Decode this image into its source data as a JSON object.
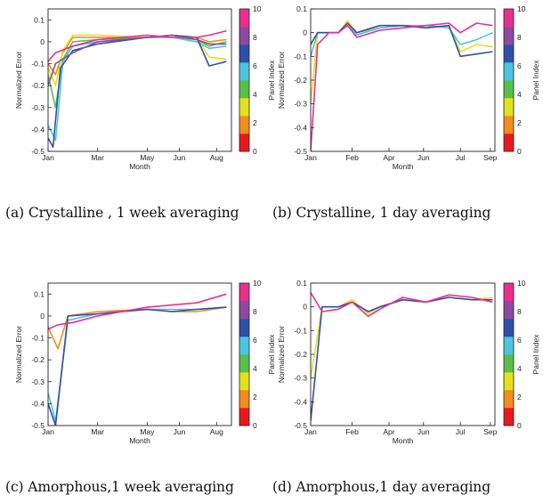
{
  "colorbar": {
    "label": "Panel Index",
    "ticks": [
      "0",
      "2",
      "4",
      "6",
      "8",
      "10"
    ],
    "colors": [
      "#e8191e",
      "#f28c1e",
      "#e2e21c",
      "#58c04a",
      "#4cc4e0",
      "#2f4fa8",
      "#8a4aa0",
      "#e8308e"
    ]
  },
  "chart_data": [
    {
      "id": "a",
      "type": "line",
      "caption": "(a) Crystalline , 1 week averaging",
      "xlabel": "Month",
      "ylabel": "Normalized Error",
      "xlim": [
        0,
        7.4
      ],
      "ylim": [
        -0.5,
        0.15
      ],
      "x_ticks": [
        {
          "x": 0,
          "label": "Jan"
        },
        {
          "x": 2,
          "label": "Mar"
        },
        {
          "x": 4,
          "label": "May"
        },
        {
          "x": 5.3,
          "label": "Jun"
        },
        {
          "x": 6.8,
          "label": "Aug"
        }
      ],
      "y_ticks": [
        {
          "v": 0.1,
          "label": "0.1"
        },
        {
          "v": 0,
          "label": "0"
        },
        {
          "v": -0.1,
          "label": "-0.1"
        },
        {
          "v": -0.2,
          "label": "-0.2"
        },
        {
          "v": -0.3,
          "label": "-0.3"
        },
        {
          "v": -0.4,
          "label": "-0.4"
        },
        {
          "v": -0.5,
          "label": "-0.5"
        }
      ],
      "series": [
        {
          "color": "#f28c1e",
          "points": [
            [
              0,
              -0.1
            ],
            [
              0.3,
              -0.15
            ],
            [
              0.6,
              -0.05
            ],
            [
              1,
              0.02
            ],
            [
              2,
              0.02
            ],
            [
              4,
              0.02
            ],
            [
              5,
              0.03
            ],
            [
              6,
              0.02
            ],
            [
              6.5,
              0.0
            ],
            [
              7.2,
              0.01
            ]
          ]
        },
        {
          "color": "#e2e21c",
          "points": [
            [
              0,
              -0.12
            ],
            [
              0.3,
              -0.2
            ],
            [
              0.6,
              -0.04
            ],
            [
              1,
              0.03
            ],
            [
              2,
              0.03
            ],
            [
              4,
              0.02
            ],
            [
              5,
              0.03
            ],
            [
              6,
              0.02
            ],
            [
              6.5,
              -0.07
            ],
            [
              7.2,
              -0.08
            ]
          ]
        },
        {
          "color": "#58c04a",
          "points": [
            [
              0,
              -0.15
            ],
            [
              0.3,
              -0.3
            ],
            [
              0.6,
              -0.08
            ],
            [
              1,
              0.0
            ],
            [
              2,
              0.01
            ],
            [
              4,
              0.02
            ],
            [
              5,
              0.02
            ],
            [
              6,
              0.01
            ],
            [
              6.5,
              -0.02
            ],
            [
              7.2,
              0.0
            ]
          ]
        },
        {
          "color": "#4cc4e0",
          "points": [
            [
              0,
              -0.38
            ],
            [
              0.3,
              -0.45
            ],
            [
              0.6,
              -0.09
            ],
            [
              1,
              -0.02
            ],
            [
              2,
              0.0
            ],
            [
              4,
              0.02
            ],
            [
              5,
              0.02
            ],
            [
              6,
              0.0
            ],
            [
              6.5,
              -0.03
            ],
            [
              7.2,
              -0.02
            ]
          ]
        },
        {
          "color": "#2f4fa8",
          "points": [
            [
              0,
              -0.44
            ],
            [
              0.2,
              -0.48
            ],
            [
              0.5,
              -0.12
            ],
            [
              1,
              -0.04
            ],
            [
              2,
              -0.01
            ],
            [
              4,
              0.02
            ],
            [
              5,
              0.03
            ],
            [
              6,
              0.02
            ],
            [
              6.5,
              -0.11
            ],
            [
              7.2,
              -0.09
            ]
          ]
        },
        {
          "color": "#8a4aa0",
          "points": [
            [
              0,
              -0.2
            ],
            [
              0.3,
              -0.1
            ],
            [
              1,
              -0.05
            ],
            [
              2,
              0.0
            ],
            [
              4,
              0.02
            ],
            [
              5,
              0.03
            ],
            [
              6,
              0.01
            ],
            [
              6.5,
              -0.01
            ],
            [
              7.2,
              -0.01
            ]
          ]
        },
        {
          "color": "#e8308e",
          "points": [
            [
              0,
              -0.09
            ],
            [
              0.3,
              -0.05
            ],
            [
              1,
              -0.02
            ],
            [
              2,
              0.01
            ],
            [
              4,
              0.03
            ],
            [
              5,
              0.02
            ],
            [
              6,
              0.02
            ],
            [
              6.5,
              0.03
            ],
            [
              7.2,
              0.05
            ]
          ]
        }
      ]
    },
    {
      "id": "b",
      "type": "line",
      "caption": "(b) Crystalline, 1 day averaging",
      "xlabel": "Month",
      "ylabel": "Normalized Error",
      "xlim": [
        0,
        8
      ],
      "ylim": [
        -0.5,
        0.1
      ],
      "x_ticks": [
        {
          "x": 0,
          "label": "Jan"
        },
        {
          "x": 1.8,
          "label": "Feb"
        },
        {
          "x": 3.4,
          "label": "Apr"
        },
        {
          "x": 4.9,
          "label": "Jun"
        },
        {
          "x": 6.5,
          "label": "Jul"
        },
        {
          "x": 7.8,
          "label": "Sep"
        }
      ],
      "y_ticks": [
        {
          "v": 0.1,
          "label": "0.1"
        },
        {
          "v": 0,
          "label": "0"
        },
        {
          "v": -0.1,
          "label": "-0.1"
        },
        {
          "v": -0.2,
          "label": "-0.2"
        },
        {
          "v": -0.3,
          "label": "-0.3"
        },
        {
          "v": -0.4,
          "label": "-0.4"
        },
        {
          "v": -0.5,
          "label": "-0.5"
        }
      ],
      "series": [
        {
          "color": "#e2e21c",
          "points": [
            [
              0,
              -0.3
            ],
            [
              0.3,
              0.0
            ],
            [
              0.8,
              0.0
            ],
            [
              1.2,
              0.0
            ],
            [
              1.6,
              0.05
            ],
            [
              2,
              0.0
            ],
            [
              3,
              0.02
            ],
            [
              4,
              0.03
            ],
            [
              5,
              0.02
            ],
            [
              6,
              0.03
            ],
            [
              6.5,
              -0.08
            ],
            [
              7.2,
              -0.05
            ],
            [
              7.9,
              -0.06
            ]
          ]
        },
        {
          "color": "#4cc4e0",
          "points": [
            [
              0,
              -0.1
            ],
            [
              0.3,
              0.0
            ],
            [
              0.8,
              0.0
            ],
            [
              1.2,
              0.0
            ],
            [
              1.6,
              0.04
            ],
            [
              2,
              -0.01
            ],
            [
              3,
              0.02
            ],
            [
              4,
              0.03
            ],
            [
              5,
              0.03
            ],
            [
              6,
              0.02
            ],
            [
              6.5,
              -0.05
            ],
            [
              7.2,
              -0.03
            ],
            [
              7.9,
              0.0
            ]
          ]
        },
        {
          "color": "#2f4fa8",
          "points": [
            [
              0,
              -0.05
            ],
            [
              0.3,
              0.0
            ],
            [
              0.8,
              0.0
            ],
            [
              1.2,
              0.0
            ],
            [
              1.6,
              0.04
            ],
            [
              2,
              0.0
            ],
            [
              3,
              0.03
            ],
            [
              4,
              0.03
            ],
            [
              5,
              0.02
            ],
            [
              6,
              0.03
            ],
            [
              6.5,
              -0.1
            ],
            [
              7.2,
              -0.09
            ],
            [
              7.9,
              -0.08
            ]
          ]
        },
        {
          "color": "#e8308e",
          "points": [
            [
              0,
              -0.5
            ],
            [
              0.3,
              -0.05
            ],
            [
              0.8,
              0.0
            ],
            [
              1.2,
              0.0
            ],
            [
              1.6,
              0.03
            ],
            [
              2,
              -0.02
            ],
            [
              3,
              0.01
            ],
            [
              4,
              0.02
            ],
            [
              5,
              0.03
            ],
            [
              6,
              0.04
            ],
            [
              6.5,
              0.0
            ],
            [
              7.2,
              0.04
            ],
            [
              7.9,
              0.03
            ]
          ]
        }
      ]
    },
    {
      "id": "c",
      "type": "line",
      "caption": "(c) Amorphous,1 week averaging",
      "xlabel": "Month",
      "ylabel": "Normalized Error",
      "xlim": [
        0,
        7.4
      ],
      "ylim": [
        -0.5,
        0.15
      ],
      "x_ticks": [
        {
          "x": 0,
          "label": "Jan"
        },
        {
          "x": 2,
          "label": "Mar"
        },
        {
          "x": 4,
          "label": "May"
        },
        {
          "x": 5.3,
          "label": "Jun"
        },
        {
          "x": 6.8,
          "label": "Aug"
        }
      ],
      "y_ticks": [
        {
          "v": 0.1,
          "label": "0.1"
        },
        {
          "v": 0,
          "label": "0"
        },
        {
          "v": -0.1,
          "label": "-0.1"
        },
        {
          "v": -0.2,
          "label": "-0.2"
        },
        {
          "v": -0.3,
          "label": "-0.3"
        },
        {
          "v": -0.4,
          "label": "-0.4"
        },
        {
          "v": -0.5,
          "label": "-0.5"
        }
      ],
      "series": [
        {
          "color": "#f28c1e",
          "points": [
            [
              0,
              -0.05
            ],
            [
              0.4,
              -0.15
            ],
            [
              0.8,
              0.0
            ],
            [
              2,
              0.02
            ],
            [
              4,
              0.03
            ],
            [
              5,
              0.02
            ],
            [
              6,
              0.02
            ],
            [
              7.2,
              0.04
            ]
          ]
        },
        {
          "color": "#4cc4e0",
          "points": [
            [
              0,
              -0.35
            ],
            [
              0.3,
              -0.48
            ],
            [
              0.8,
              -0.02
            ],
            [
              2,
              0.01
            ],
            [
              4,
              0.03
            ],
            [
              5,
              0.03
            ],
            [
              6,
              0.03
            ],
            [
              7.2,
              0.04
            ]
          ]
        },
        {
          "color": "#2f4fa8",
          "points": [
            [
              0,
              -0.4
            ],
            [
              0.3,
              -0.5
            ],
            [
              0.8,
              0.0
            ],
            [
              2,
              0.01
            ],
            [
              4,
              0.03
            ],
            [
              5,
              0.02
            ],
            [
              6,
              0.03
            ],
            [
              7.2,
              0.04
            ]
          ]
        },
        {
          "color": "#e8308e",
          "points": [
            [
              0,
              -0.06
            ],
            [
              0.4,
              -0.04
            ],
            [
              1,
              -0.03
            ],
            [
              2,
              0.0
            ],
            [
              4,
              0.04
            ],
            [
              5,
              0.05
            ],
            [
              6,
              0.06
            ],
            [
              7.2,
              0.1
            ]
          ]
        }
      ]
    },
    {
      "id": "d",
      "type": "line",
      "caption": "(d) Amorphous,1 day averaging",
      "xlabel": "Month",
      "ylabel": "Normalized Error",
      "xlim": [
        0,
        8
      ],
      "ylim": [
        -0.5,
        0.1
      ],
      "x_ticks": [
        {
          "x": 0,
          "label": "Jan"
        },
        {
          "x": 1.8,
          "label": "Feb"
        },
        {
          "x": 3.4,
          "label": "Apr"
        },
        {
          "x": 4.9,
          "label": "Jun"
        },
        {
          "x": 6.5,
          "label": "Jul"
        },
        {
          "x": 7.8,
          "label": "Sep"
        }
      ],
      "y_ticks": [
        {
          "v": 0.1,
          "label": "0.1"
        },
        {
          "v": 0,
          "label": "0"
        },
        {
          "v": -0.1,
          "label": "-0.1"
        },
        {
          "v": -0.2,
          "label": "-0.2"
        },
        {
          "v": -0.3,
          "label": "-0.3"
        },
        {
          "v": -0.4,
          "label": "-0.4"
        },
        {
          "v": -0.5,
          "label": "-0.5"
        }
      ],
      "series": [
        {
          "color": "#e2e21c",
          "points": [
            [
              0,
              -0.3
            ],
            [
              0.5,
              0.0
            ],
            [
              1.2,
              0.0
            ],
            [
              1.8,
              0.03
            ],
            [
              2.5,
              -0.03
            ],
            [
              3,
              0.0
            ],
            [
              4,
              0.03
            ],
            [
              5,
              0.02
            ],
            [
              6,
              0.04
            ],
            [
              7,
              0.03
            ],
            [
              7.9,
              0.04
            ]
          ]
        },
        {
          "color": "#2f4fa8",
          "points": [
            [
              0,
              -0.48
            ],
            [
              0.5,
              0.0
            ],
            [
              1.2,
              0.0
            ],
            [
              1.8,
              0.02
            ],
            [
              2.5,
              -0.02
            ],
            [
              3,
              0.0
            ],
            [
              4,
              0.03
            ],
            [
              5,
              0.02
            ],
            [
              6,
              0.04
            ],
            [
              7,
              0.03
            ],
            [
              7.9,
              0.03
            ]
          ]
        },
        {
          "color": "#e8308e",
          "points": [
            [
              0,
              0.06
            ],
            [
              0.5,
              -0.02
            ],
            [
              1.2,
              -0.01
            ],
            [
              1.8,
              0.02
            ],
            [
              2.5,
              -0.04
            ],
            [
              3,
              -0.01
            ],
            [
              4,
              0.04
            ],
            [
              5,
              0.02
            ],
            [
              6,
              0.05
            ],
            [
              7,
              0.04
            ],
            [
              7.9,
              0.02
            ]
          ]
        }
      ]
    }
  ]
}
